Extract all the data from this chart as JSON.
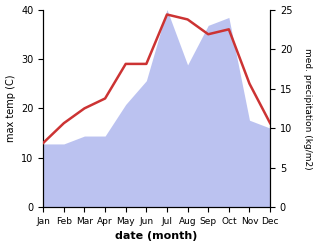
{
  "months": [
    "Jan",
    "Feb",
    "Mar",
    "Apr",
    "May",
    "Jun",
    "Jul",
    "Aug",
    "Sep",
    "Oct",
    "Nov",
    "Dec"
  ],
  "temp_max": [
    13,
    17,
    20,
    22,
    29,
    29,
    39,
    38,
    35,
    36,
    25,
    17
  ],
  "precip": [
    8,
    8,
    9,
    9,
    13,
    16,
    25,
    18,
    23,
    24,
    11,
    10
  ],
  "temp_color": "#cc3333",
  "precip_color": "#b0b8ee",
  "left_ylim": [
    0,
    40
  ],
  "right_ylim": [
    0,
    25
  ],
  "left_yticks": [
    0,
    10,
    20,
    30,
    40
  ],
  "right_yticks": [
    0,
    5,
    10,
    15,
    20,
    25
  ],
  "xlabel": "date (month)",
  "ylabel_left": "max temp (C)",
  "ylabel_right": "med. precipitation (kg/m2)",
  "figsize": [
    3.18,
    2.47
  ],
  "dpi": 100,
  "temp_linewidth": 1.8,
  "bg_color": "#ffffff"
}
